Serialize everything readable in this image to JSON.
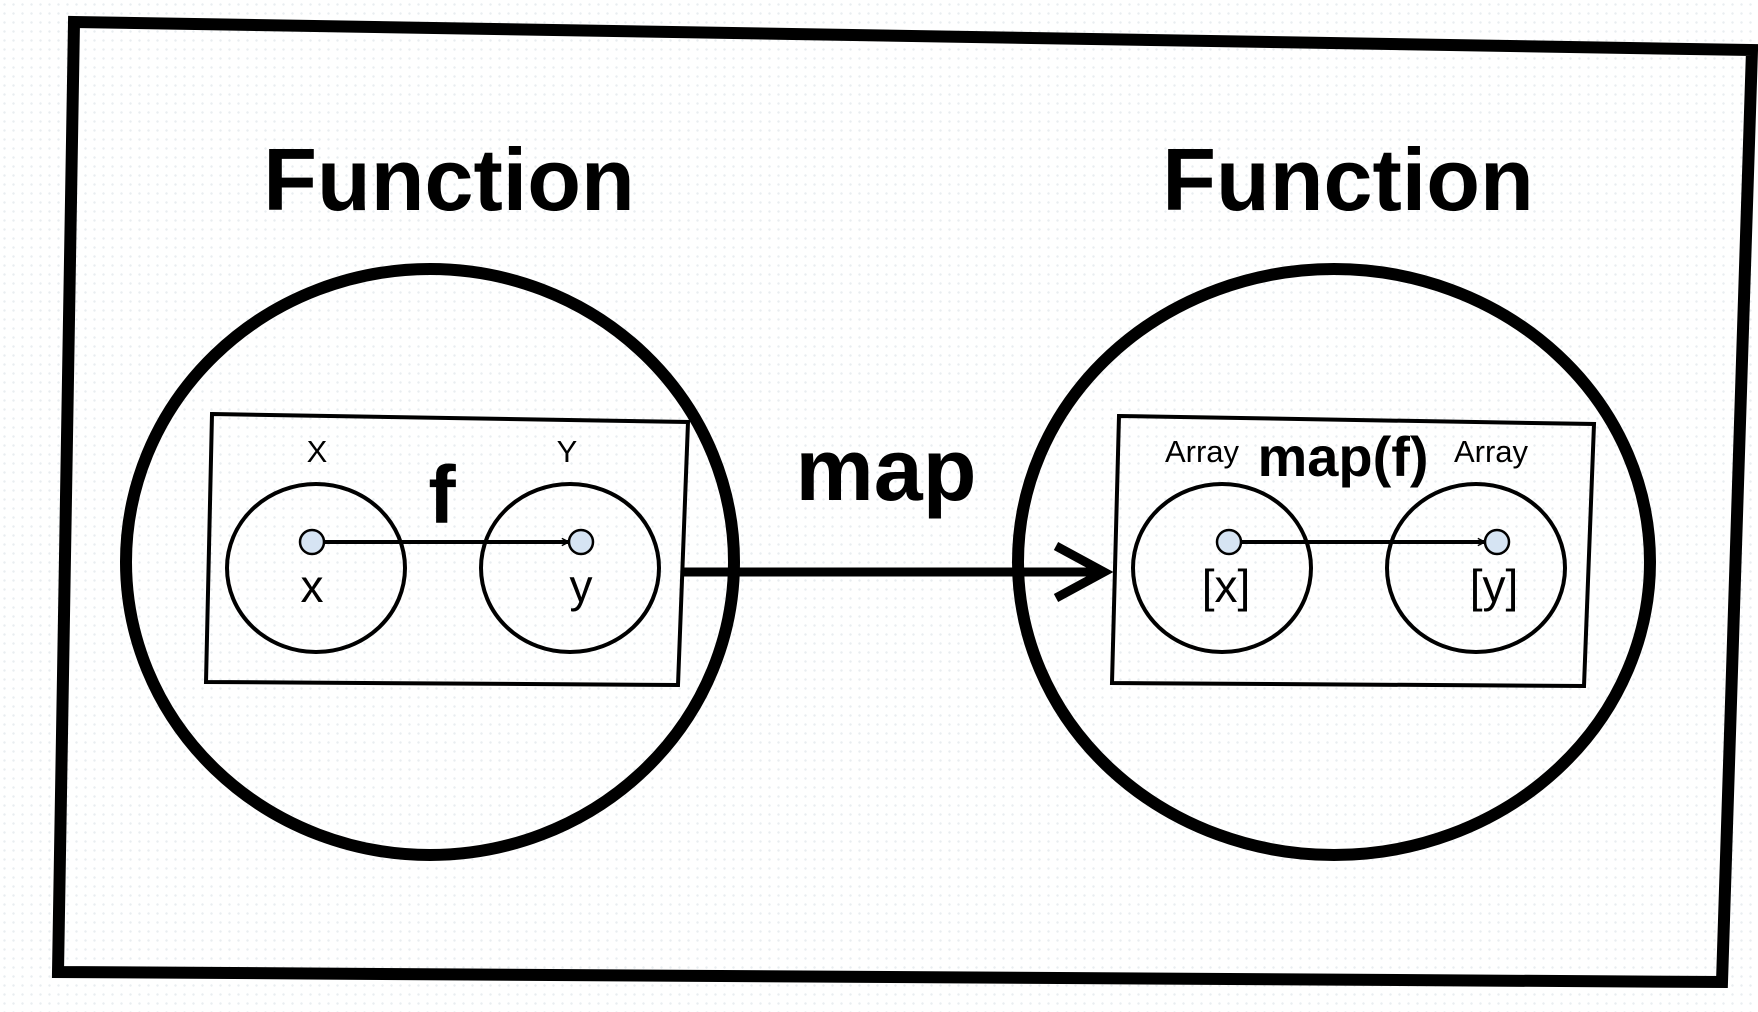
{
  "diagram": {
    "left_category": {
      "title": "Function"
    },
    "right_category": {
      "title": "Function"
    },
    "functor_label": "map",
    "left_morphism": {
      "label": "f",
      "domain_label": "X",
      "codomain_label": "Y",
      "element_in": "x",
      "element_out": "y"
    },
    "right_morphism": {
      "label": "map(f)",
      "domain_label": "Array",
      "codomain_label": "Array",
      "element_in": "[x]",
      "element_out": "[y]"
    },
    "colors": {
      "stroke": "#000000",
      "point_fill": "#d6e4f3",
      "background": "#ffffff"
    }
  }
}
